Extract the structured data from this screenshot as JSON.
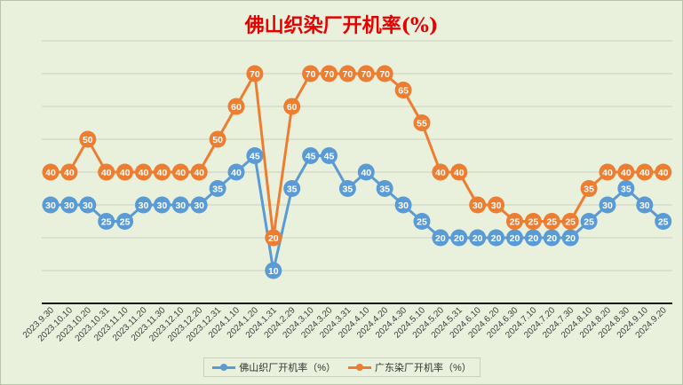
{
  "chart_data": {
    "type": "line",
    "title": "佛山织染厂开机率(%)",
    "xlabel": "",
    "ylabel": "",
    "ylim": [
      0,
      80
    ],
    "grid": true,
    "legend_position": "bottom",
    "categories": [
      "2023.9.30",
      "2023.10.10",
      "2023.10.20",
      "2023.10.31",
      "2023.11.10",
      "2023.11.20",
      "2023.11.30",
      "2023.12.10",
      "2023.12.20",
      "2023.12.31",
      "2024.1.10",
      "2024.1.20",
      "2024.1.31",
      "2024.2.29",
      "2024.3.10",
      "2024.3.20",
      "2024.3.31",
      "2024.4.10",
      "2024.4.20",
      "2024.4.30",
      "2024.5.10",
      "2024.5.20",
      "2024.5.31",
      "2024.6.10",
      "2024.6.20",
      "2024.6.30",
      "2024.7.10",
      "2024.7.20",
      "2024.7.30",
      "2024.8.10",
      "2024.8.20",
      "2024.8.30",
      "2024.9.10",
      "2024.9.20"
    ],
    "series": [
      {
        "name": "佛山织厂开机率（%）",
        "color": "#5b9bd5",
        "values": [
          30,
          30,
          30,
          25,
          25,
          30,
          30,
          30,
          30,
          35,
          40,
          45,
          10,
          35,
          45,
          45,
          35,
          40,
          35,
          30,
          25,
          20,
          20,
          20,
          20,
          20,
          20,
          20,
          20,
          25,
          30,
          35,
          30,
          25
        ]
      },
      {
        "name": "广东染厂开机率（%）",
        "color": "#ed7d31",
        "values": [
          40,
          40,
          50,
          40,
          40,
          40,
          40,
          40,
          40,
          50,
          60,
          70,
          20,
          60,
          70,
          70,
          70,
          70,
          70,
          65,
          55,
          40,
          40,
          30,
          30,
          25,
          25,
          25,
          25,
          35,
          40,
          40,
          40,
          40
        ]
      }
    ]
  }
}
